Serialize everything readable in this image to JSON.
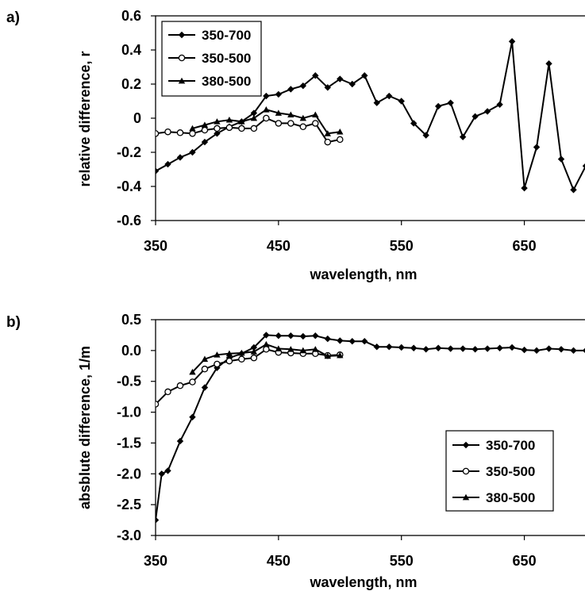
{
  "chart_data": [
    {
      "type": "line",
      "panel_label": "a)",
      "xlabel": "wavelength, nm",
      "ylabel": "relative difference, r",
      "xlim": [
        350,
        700
      ],
      "ylim": [
        -0.6,
        0.6
      ],
      "xticks": [
        350,
        450,
        550,
        650
      ],
      "xtick_labels": [
        "350",
        "450",
        "550",
        "650"
      ],
      "yticks": [
        -0.6,
        -0.4,
        -0.2,
        0,
        0.2,
        0.4,
        0.6
      ],
      "ytick_labels": [
        "-0.6",
        "-0.4",
        "-0.2",
        "0",
        "0.2",
        "0.4",
        "0.6"
      ],
      "grid": false,
      "legend_position": "top-left",
      "series": [
        {
          "name": "350-700",
          "marker": "diamond",
          "x": [
            350,
            360,
            370,
            380,
            390,
            400,
            410,
            420,
            430,
            440,
            450,
            460,
            470,
            480,
            490,
            500,
            510,
            520,
            530,
            540,
            550,
            560,
            570,
            580,
            590,
            600,
            610,
            620,
            630,
            640,
            650,
            660,
            670,
            680,
            690,
            700
          ],
          "y": [
            -0.31,
            -0.27,
            -0.23,
            -0.2,
            -0.14,
            -0.09,
            -0.05,
            -0.02,
            0.03,
            0.13,
            0.14,
            0.17,
            0.19,
            0.25,
            0.18,
            0.23,
            0.2,
            0.25,
            0.09,
            0.13,
            0.1,
            -0.03,
            -0.1,
            0.07,
            0.09,
            -0.11,
            0.01,
            0.04,
            0.08,
            0.45,
            -0.41,
            -0.17,
            0.32,
            -0.24,
            -0.42,
            -0.28
          ]
        },
        {
          "name": "350-500",
          "marker": "circle",
          "x": [
            350,
            360,
            370,
            380,
            390,
            400,
            410,
            420,
            430,
            440,
            450,
            460,
            470,
            480,
            490,
            500
          ],
          "y": [
            -0.09,
            -0.08,
            -0.085,
            -0.09,
            -0.07,
            -0.06,
            -0.055,
            -0.06,
            -0.06,
            0.0,
            -0.03,
            -0.03,
            -0.05,
            -0.03,
            -0.14,
            -0.125
          ]
        },
        {
          "name": "380-500",
          "marker": "triangle",
          "x": [
            380,
            390,
            400,
            410,
            420,
            430,
            440,
            450,
            460,
            470,
            480,
            490,
            500
          ],
          "y": [
            -0.06,
            -0.04,
            -0.02,
            -0.01,
            -0.02,
            0.0,
            0.05,
            0.03,
            0.02,
            0.0,
            0.02,
            -0.09,
            -0.08
          ]
        }
      ]
    },
    {
      "type": "line",
      "panel_label": "b)",
      "xlabel": "wavelength, nm",
      "ylabel": "absblute difference, 1/m",
      "xlim": [
        350,
        700
      ],
      "ylim": [
        -3.0,
        0.5
      ],
      "xticks": [
        350,
        450,
        550,
        650
      ],
      "xtick_labels": [
        "350",
        "450",
        "550",
        "650"
      ],
      "yticks": [
        -3.0,
        -2.5,
        -2.0,
        -1.5,
        -1.0,
        -0.5,
        0.0,
        0.5
      ],
      "ytick_labels": [
        "-3.0",
        "-2.5",
        "-2.0",
        "-1.5",
        "-1.0",
        "-0.5",
        "0.0",
        "0.5"
      ],
      "grid": false,
      "legend_position": "bottom-right",
      "series": [
        {
          "name": "350-700",
          "marker": "diamond",
          "x": [
            350,
            355,
            360,
            370,
            380,
            390,
            400,
            410,
            420,
            430,
            440,
            450,
            460,
            470,
            480,
            490,
            500,
            510,
            520,
            530,
            540,
            550,
            560,
            570,
            580,
            590,
            600,
            610,
            620,
            630,
            640,
            650,
            660,
            670,
            680,
            690,
            700
          ],
          "y": [
            -2.75,
            -2.0,
            -1.95,
            -1.47,
            -1.08,
            -0.6,
            -0.28,
            -0.12,
            -0.05,
            0.05,
            0.25,
            0.24,
            0.24,
            0.23,
            0.24,
            0.19,
            0.16,
            0.15,
            0.15,
            0.06,
            0.06,
            0.05,
            0.04,
            0.02,
            0.04,
            0.03,
            0.03,
            0.02,
            0.03,
            0.04,
            0.05,
            0.01,
            0.0,
            0.03,
            0.02,
            0.0,
            0.0
          ]
        },
        {
          "name": "350-500",
          "marker": "circle",
          "x": [
            350,
            360,
            370,
            380,
            390,
            400,
            410,
            420,
            430,
            440,
            450,
            460,
            470,
            480,
            490,
            500
          ],
          "y": [
            -0.87,
            -0.67,
            -0.57,
            -0.51,
            -0.3,
            -0.22,
            -0.17,
            -0.14,
            -0.12,
            0.02,
            -0.03,
            -0.04,
            -0.05,
            -0.05,
            -0.08,
            -0.07
          ]
        },
        {
          "name": "380-500",
          "marker": "triangle",
          "x": [
            380,
            390,
            400,
            410,
            420,
            430,
            440,
            450,
            460,
            470,
            480,
            490,
            500
          ],
          "y": [
            -0.35,
            -0.14,
            -0.07,
            -0.05,
            -0.04,
            -0.02,
            0.1,
            0.03,
            0.02,
            0.0,
            0.02,
            -0.09,
            -0.08
          ]
        }
      ]
    }
  ]
}
